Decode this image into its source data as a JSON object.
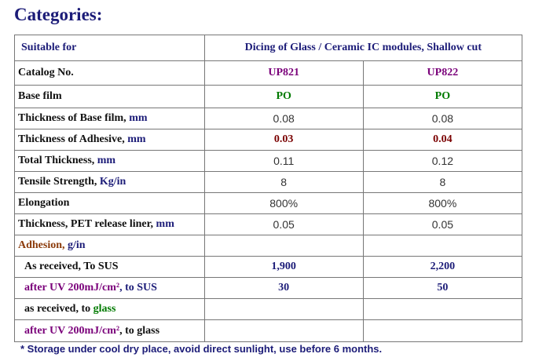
{
  "title": "Categories:",
  "table": {
    "header": {
      "label": "Suitable for",
      "value": "Dicing of Glass / Ceramic IC modules, Shallow cut"
    },
    "rows": [
      {
        "label": [
          "Catalog No."
        ],
        "cells": [
          "UP821",
          "UP822"
        ]
      },
      {
        "label": [
          "Base film"
        ],
        "cells": [
          "PO",
          "PO"
        ]
      },
      {
        "label": [
          "Thickness of Base film, ",
          "mm"
        ],
        "cells": [
          "0.08",
          "0.08"
        ]
      },
      {
        "label": [
          "Thickness of Adhesive, ",
          "mm"
        ],
        "cells": [
          "0.03",
          "0.04"
        ]
      },
      {
        "label": [
          "Total Thickness, ",
          "mm"
        ],
        "cells": [
          "0.11",
          "0.12"
        ]
      },
      {
        "label": [
          "Tensile Strength, ",
          "Kg/in"
        ],
        "cells": [
          "8",
          "8"
        ]
      },
      {
        "label": [
          "Elongation"
        ],
        "cells": [
          "800%",
          "800%"
        ]
      },
      {
        "label": [
          "Thickness, PET release liner, ",
          "mm"
        ],
        "cells": [
          "0.05",
          "0.05"
        ]
      },
      {
        "label": [
          "Adhesion,",
          " g/in"
        ]
      },
      {
        "label": [
          "As received, To SUS"
        ],
        "cells": [
          "1,900",
          "2,200"
        ]
      },
      {
        "label": [
          "after UV 200mJ/cm²",
          ", to SUS"
        ],
        "cells": [
          "30",
          "50"
        ]
      },
      {
        "label": [
          "as received, to ",
          "glass"
        ]
      },
      {
        "label": [
          "after UV 200mJ/cm²",
          ", to glass"
        ]
      }
    ]
  },
  "footnote": "* Storage under cool dry place, avoid direct sunlight, use before 6 months."
}
